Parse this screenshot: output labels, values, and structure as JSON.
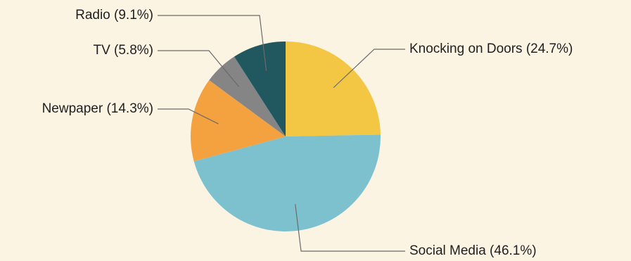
{
  "chart_data": {
    "type": "pie",
    "title": "",
    "start_angle_deg": 0,
    "direction": "clockwise",
    "slices": [
      {
        "label": "Knocking on Doors (24.7%)",
        "value": 24.7,
        "color": "#f3c643"
      },
      {
        "label": "Social Media (46.1%)",
        "value": 46.1,
        "color": "#7dc1cf"
      },
      {
        "label": "Newpaper (14.3%)",
        "value": 14.3,
        "color": "#f4a13f"
      },
      {
        "label": "TV (5.8%)",
        "value": 5.8,
        "color": "#858585"
      },
      {
        "label": "Radio (9.1%)",
        "value": 9.1,
        "color": "#215860"
      }
    ]
  }
}
